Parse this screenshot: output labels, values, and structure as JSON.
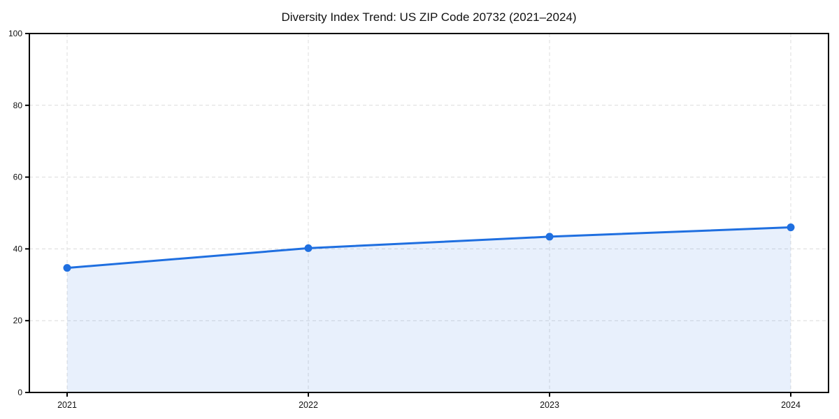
{
  "chart_data": {
    "type": "area",
    "title": "Diversity Index Trend: US ZIP Code 20732 (2021–2024)",
    "series_name": "Diversity Index",
    "categories": [
      "2021",
      "2022",
      "2023",
      "2024"
    ],
    "values": [
      34.7,
      40.2,
      43.4,
      46.0
    ],
    "xlabel": "",
    "ylabel": "",
    "ylim": [
      0,
      100
    ],
    "yticks": [
      0,
      20,
      40,
      60,
      80,
      100
    ],
    "grid": true,
    "grid_style": "dashed",
    "legend": false,
    "colors": {
      "line": "#1f6fe0",
      "marker": "#1f6fe0",
      "fill": "#1f6fe0",
      "fill_opacity": 0.1,
      "grid": "#dcdcdc",
      "axis": "#000000",
      "text": "#111111",
      "background": "#ffffff"
    }
  }
}
